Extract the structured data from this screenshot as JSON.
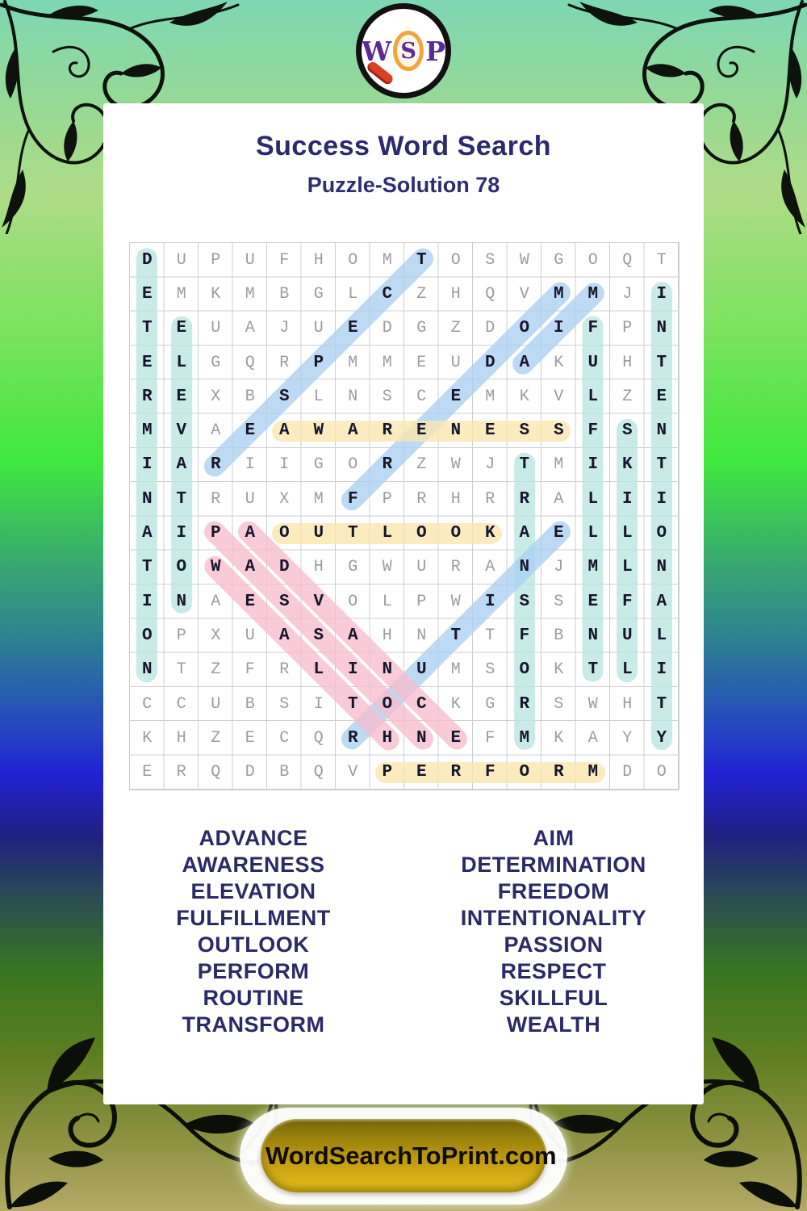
{
  "logo": {
    "letters": [
      "W",
      "S",
      "P"
    ]
  },
  "header": {
    "title": "Success Word Search",
    "subtitle": "Puzzle-Solution 78"
  },
  "grid": {
    "rows": [
      "DUPUFHOMTOSWGOQT",
      "EMKMBGLCZHQVMMJI",
      "TEUAJUEDGZDOIFPN",
      "ELGQRPMMEUDAKUHT",
      "REXBSLNSCEMKVLZE",
      "MVAEAWARENESSFSN",
      "IARIIGORZWJTMIKT",
      "NTRUXMFPRHRRALII",
      "AIPAOUTLOOKAELLO",
      "TOWADHGWURANJMLN",
      "INAESVOLPWISSEFA",
      "OPXUASAHNTTFBNUL",
      "NTZFRLINUMSOKTLI",
      "CCUBSITOCKGRSWHT",
      "KHZECQRHNEFMKAYY",
      "ERQDBQVPERFORMDO"
    ],
    "highlights": [
      {
        "word": "DETERMINATION",
        "from": [
          1,
          1
        ],
        "to": [
          1,
          13
        ],
        "color": "teal"
      },
      {
        "word": "ELEVATION",
        "from": [
          2,
          3
        ],
        "to": [
          2,
          11
        ],
        "color": "teal"
      },
      {
        "word": "TRANSFORM",
        "from": [
          12,
          7
        ],
        "to": [
          12,
          15
        ],
        "color": "teal"
      },
      {
        "word": "FULFILLMENT",
        "from": [
          14,
          3
        ],
        "to": [
          14,
          13
        ],
        "color": "teal"
      },
      {
        "word": "SKILLFUL",
        "from": [
          15,
          6
        ],
        "to": [
          15,
          13
        ],
        "color": "teal"
      },
      {
        "word": "INTENTIONALITY",
        "from": [
          16,
          2
        ],
        "to": [
          16,
          15
        ],
        "color": "teal"
      },
      {
        "word": "RESPECT",
        "from": [
          3,
          7
        ],
        "to": [
          9,
          1
        ],
        "color": "blue"
      },
      {
        "word": "FREEDOM",
        "from": [
          7,
          8
        ],
        "to": [
          13,
          2
        ],
        "color": "blue"
      },
      {
        "word": "AIM",
        "from": [
          12,
          4
        ],
        "to": [
          14,
          2
        ],
        "color": "blue"
      },
      {
        "word": "ROUTINE",
        "from": [
          7,
          15
        ],
        "to": [
          13,
          9
        ],
        "color": "blue"
      },
      {
        "word": "PASSION",
        "from": [
          3,
          9
        ],
        "to": [
          9,
          15
        ],
        "color": "pink"
      },
      {
        "word": "ADVANCE",
        "from": [
          4,
          9
        ],
        "to": [
          10,
          15
        ],
        "color": "pink"
      },
      {
        "word": "WEALTH",
        "from": [
          3,
          10
        ],
        "to": [
          8,
          15
        ],
        "color": "pink"
      },
      {
        "word": "AWARENESS",
        "from": [
          5,
          6
        ],
        "to": [
          13,
          6
        ],
        "color": "yellow"
      },
      {
        "word": "OUTLOOK",
        "from": [
          5,
          9
        ],
        "to": [
          11,
          9
        ],
        "color": "yellow"
      },
      {
        "word": "PERFORM",
        "from": [
          8,
          16
        ],
        "to": [
          14,
          16
        ],
        "color": "yellow"
      }
    ],
    "highlight_colors": {
      "teal": "#b9e6e0",
      "blue": "#abd0f1",
      "pink": "#f7bccd",
      "yellow": "#fae6ad"
    }
  },
  "word_list": {
    "left": [
      "ADVANCE",
      "AWARENESS",
      "ELEVATION",
      "FULFILLMENT",
      "OUTLOOK",
      "PERFORM",
      "ROUTINE",
      "TRANSFORM"
    ],
    "right": [
      "AIM",
      "DETERMINATION",
      "FREEDOM",
      "INTENTIONALITY",
      "PASSION",
      "RESPECT",
      "SKILLFUL",
      "WEALTH"
    ]
  },
  "colors": {
    "title_navy": "#2b2a6e",
    "logo_purple": "#5a2a96",
    "logo_orange": "#f2a33c",
    "logo_red": "#d74226",
    "button_gold": "#c79f10"
  },
  "footer": {
    "button_label": "WordSearchToPrint.com"
  }
}
